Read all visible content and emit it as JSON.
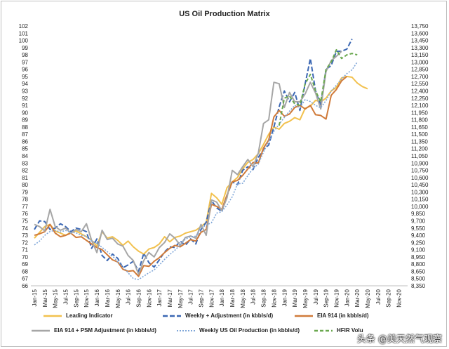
{
  "chart_data": {
    "type": "line",
    "title": "US Oil Production Matrix",
    "xlabel": "",
    "ylabel_left": "",
    "ylabel_right": "",
    "categories": [
      "Jan-15",
      "Feb-15",
      "Mar-15",
      "Apr-15",
      "May-15",
      "Jun-15",
      "Jul-15",
      "Aug-15",
      "Sep-15",
      "Oct-15",
      "Nov-15",
      "Dec-15",
      "Jan-16",
      "Feb-16",
      "Mar-16",
      "Apr-16",
      "May-16",
      "Jun-16",
      "Jul-16",
      "Aug-16",
      "Sep-16",
      "Oct-16",
      "Nov-16",
      "Dec-16",
      "Jan-17",
      "Feb-17",
      "Mar-17",
      "Apr-17",
      "May-17",
      "Jun-17",
      "Jul-17",
      "Aug-17",
      "Sep-17",
      "Oct-17",
      "Nov-17",
      "Dec-17",
      "Jan-18",
      "Feb-18",
      "Mar-18",
      "Apr-18",
      "May-18",
      "Jun-18",
      "Jul-18",
      "Aug-18",
      "Sep-18",
      "Oct-18",
      "Nov-18",
      "Dec-18",
      "Jan-19",
      "Feb-19",
      "Mar-19",
      "Apr-19",
      "May-19",
      "Jun-19",
      "Jul-19",
      "Aug-19",
      "Sep-19",
      "Oct-19",
      "Nov-19",
      "Dec-19",
      "Jan-20",
      "Feb-20",
      "Mar-20",
      "Apr-20",
      "May-20",
      "Jun-20",
      "Jul-20",
      "Aug-20",
      "Sep-20",
      "Oct-20",
      "Nov-20",
      "Dec-20"
    ],
    "x_tick_labels": [
      "Jan-15",
      "Mar-15",
      "May-15",
      "Jul-15",
      "Sep-15",
      "Nov-15",
      "Jan-16",
      "Mar-16",
      "May-16",
      "Jul-16",
      "Sep-16",
      "Nov-16",
      "Jan-17",
      "Mar-17",
      "May-17",
      "Jul-17",
      "Sep-17",
      "Nov-17",
      "Jan-18",
      "Mar-18",
      "May-18",
      "Jul-18",
      "Sep-18",
      "Nov-18",
      "Jan-19",
      "Mar-19",
      "May-19",
      "Jul-19",
      "Sep-19",
      "Nov-19",
      "Jan-20",
      "Mar-20",
      "May-20",
      "Jul-20",
      "Sep-20",
      "Nov-20"
    ],
    "ylim_left": [
      66,
      102
    ],
    "ylim_right": [
      8350,
      13750
    ],
    "y_left_ticks": [
      66,
      67,
      68,
      69,
      70,
      71,
      72,
      73,
      74,
      75,
      76,
      77,
      78,
      79,
      80,
      81,
      82,
      83,
      84,
      85,
      86,
      87,
      88,
      89,
      90,
      91,
      92,
      93,
      94,
      95,
      96,
      97,
      98,
      99,
      100,
      101,
      102
    ],
    "y_right_ticks": [
      "8,350",
      "8,500",
      "8,650",
      "8,800",
      "8,950",
      "9,100",
      "9,250",
      "9,400",
      "9,550",
      "9,700",
      "9,850",
      "10,000",
      "10,150",
      "10,300",
      "10,450",
      "10,600",
      "10,750",
      "10,900",
      "11,050",
      "11,200",
      "11,350",
      "11,500",
      "11,650",
      "11,800",
      "11,950",
      "12,100",
      "12,250",
      "12,400",
      "12,550",
      "12,700",
      "12,850",
      "13,000",
      "13,150",
      "13,300",
      "13,450",
      "13,600",
      "13,750"
    ],
    "grid": false,
    "legend_position": "bottom",
    "series": [
      {
        "name": "Leading Indicator",
        "axis": "left",
        "color": "#f2c14e",
        "dash": "solid",
        "values": [
          72.6,
          73.4,
          74.2,
          74.5,
          73.6,
          73.3,
          73.0,
          73.4,
          73.6,
          73.2,
          72.8,
          72.3,
          71.5,
          73.5,
          72.6,
          72.8,
          72.3,
          71.6,
          72.2,
          71.4,
          70.8,
          70.4,
          71.1,
          71.3,
          71.8,
          72.8,
          72.1,
          72.7,
          72.9,
          73.3,
          73.5,
          73.7,
          74.2,
          74.8,
          78.8,
          78.2,
          77.3,
          79.6,
          80.4,
          81.0,
          82.2,
          83.1,
          83.5,
          84.3,
          85.6,
          87.0,
          88.0,
          87.7,
          88.5,
          88.8,
          89.3,
          89.0,
          90.6,
          90.9,
          91.7,
          91.5,
          92.0,
          93.0,
          93.5,
          94.8,
          95.0,
          94.9,
          94.1,
          93.6,
          93.3,
          null,
          null,
          null,
          null,
          null,
          null,
          null
        ]
      },
      {
        "name": "Weekly + Adjustment (in kbbls/d)",
        "axis": "left",
        "color": "#3b67b3",
        "dash": "longdash",
        "values": [
          73.8,
          75.0,
          74.9,
          73.8,
          74.0,
          74.6,
          74.2,
          73.5,
          74.0,
          73.8,
          73.5,
          71.2,
          72.5,
          70.2,
          69.5,
          70.4,
          69.8,
          68.5,
          68.9,
          69.4,
          68.0,
          70.5,
          69.2,
          68.6,
          69.6,
          70.7,
          71.4,
          71.3,
          72.2,
          71.6,
          72.5,
          71.8,
          73.8,
          74.8,
          77.8,
          76.8,
          76.3,
          78.5,
          80.4,
          80.0,
          82.0,
          82.5,
          82.1,
          83.8,
          84.9,
          85.5,
          88.0,
          90.8,
          93.0,
          91.5,
          92.8,
          90.3,
          94.0,
          97.5,
          93.0,
          91.0,
          96.0,
          96.5,
          98.5,
          98.5,
          98.8,
          100.2,
          null,
          null,
          null,
          null,
          null,
          null,
          null,
          null,
          null,
          null
        ]
      },
      {
        "name": "EIA 914 (in kbbls/d)",
        "axis": "left",
        "color": "#d07b3a",
        "dash": "solid",
        "values": [
          73.0,
          73.2,
          73.5,
          74.5,
          73.3,
          72.8,
          73.0,
          73.3,
          72.7,
          72.8,
          72.3,
          71.8,
          71.3,
          71.0,
          70.3,
          69.6,
          69.3,
          68.3,
          68.0,
          68.1,
          67.3,
          68.8,
          68.7,
          69.4,
          69.9,
          70.6,
          71.2,
          71.6,
          71.4,
          71.9,
          72.4,
          72.2,
          73.4,
          73.8,
          77.3,
          77.0,
          76.6,
          78.6,
          80.4,
          80.6,
          81.3,
          82.2,
          83.1,
          83.0,
          85.1,
          86.2,
          89.4,
          90.3,
          89.5,
          89.8,
          90.7,
          91.0,
          90.5,
          91.0,
          89.7,
          89.6,
          89.1,
          92.4,
          93.2,
          94.4,
          95.0,
          null,
          null,
          null,
          null,
          null,
          null,
          null,
          null,
          null,
          null,
          null
        ]
      },
      {
        "name": "EIA 914 + PSM Adjustment (in kbbls/d)",
        "axis": "left",
        "color": "#a6a6a6",
        "dash": "solid",
        "values": [
          74.5,
          74.2,
          73.6,
          76.6,
          74.2,
          73.7,
          74.0,
          73.3,
          73.8,
          73.5,
          74.6,
          72.3,
          70.6,
          73.7,
          72.4,
          72.6,
          71.8,
          71.5,
          70.2,
          69.5,
          67.6,
          69.5,
          70.6,
          70.0,
          71.3,
          72.0,
          73.2,
          72.6,
          71.6,
          72.7,
          72.9,
          72.6,
          74.5,
          73.0,
          77.9,
          77.6,
          76.4,
          78.2,
          82.0,
          81.4,
          82.5,
          83.5,
          82.5,
          84.4,
          88.5,
          89.0,
          94.2,
          94.0,
          90.7,
          92.8,
          91.5,
          91.5,
          92.6,
          94.2,
          92.7,
          90.5,
          95.7,
          97.2,
          97.8,
          98.5,
          null,
          null,
          null,
          null,
          null,
          null,
          null,
          null,
          null,
          null,
          null,
          null
        ]
      },
      {
        "name": "Weekly US Oil Production (in kbbls/d)",
        "axis": "right",
        "color": "#7fa6d8",
        "dash": "dotted",
        "values": [
          9200,
          9280,
          9400,
          9480,
          9500,
          9470,
          9500,
          9460,
          9450,
          9400,
          9380,
          9290,
          9230,
          9150,
          9060,
          8970,
          8850,
          8750,
          8620,
          8500,
          8480,
          8550,
          8620,
          8680,
          8780,
          8900,
          9000,
          9090,
          9200,
          9320,
          9370,
          9380,
          9550,
          9610,
          9660,
          9860,
          9890,
          10030,
          10200,
          10470,
          10480,
          10640,
          10790,
          10880,
          11130,
          11350,
          11560,
          11710,
          11850,
          11980,
          12100,
          12050,
          12220,
          12180,
          12100,
          12050,
          12200,
          12400,
          12520,
          12650,
          12760,
          12840,
          13000,
          null,
          null,
          null,
          null,
          null,
          null,
          null,
          null,
          null
        ]
      },
      {
        "name": "HFIR Volumes (in kbbls/d)",
        "axis": "left",
        "color": "#6aa84f",
        "dash": "dash",
        "values": [
          null,
          null,
          null,
          null,
          null,
          null,
          null,
          null,
          null,
          null,
          null,
          null,
          null,
          null,
          null,
          null,
          null,
          null,
          null,
          null,
          null,
          null,
          null,
          null,
          null,
          null,
          null,
          null,
          null,
          null,
          null,
          null,
          null,
          null,
          null,
          null,
          null,
          null,
          null,
          null,
          null,
          null,
          null,
          null,
          null,
          null,
          null,
          88.2,
          92.0,
          92.3,
          91.2,
          91.0,
          94.0,
          95.3,
          93.0,
          91.5,
          96.0,
          97.0,
          98.7,
          97.5,
          98.0,
          98.2,
          98.0,
          null,
          null,
          null,
          null,
          null,
          null,
          null,
          null,
          null
        ]
      }
    ]
  },
  "legend": {
    "items": [
      {
        "label": "Leading Indicator",
        "color": "#f2c14e",
        "dash": "solid"
      },
      {
        "label": "Weekly + Adjustment (in kbbls/d)",
        "color": "#3b67b3",
        "dash": "longdash"
      },
      {
        "label": "EIA 914 (in kbbls/d)",
        "color": "#d07b3a",
        "dash": "solid"
      },
      {
        "label": "EIA 914 + PSM Adjustment (in kbbls/d)",
        "color": "#a6a6a6",
        "dash": "solid"
      },
      {
        "label": "Weekly US Oil Production (in kbbls/d)",
        "color": "#7fa6d8",
        "dash": "dotted"
      },
      {
        "label": "HFIR Volu",
        "color": "#6aa84f",
        "dash": "dash"
      }
    ]
  },
  "watermark": "头条 @美天然气观察"
}
